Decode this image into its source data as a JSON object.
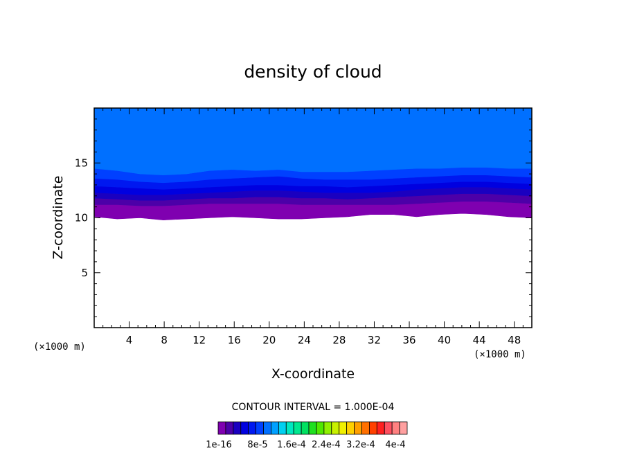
{
  "chart_data": {
    "type": "filled-contour",
    "title": "density of cloud",
    "xlabel": "X-coordinate",
    "ylabel": "Z-coordinate",
    "x_unit": "(×1000 m)",
    "y_unit": "(×1000 m)",
    "xlim": [
      0,
      50
    ],
    "ylim": [
      0,
      20
    ],
    "x_ticks": [
      4,
      8,
      12,
      16,
      20,
      24,
      28,
      32,
      36,
      40,
      44,
      48
    ],
    "y_ticks": [
      5,
      10,
      15
    ],
    "contour_interval_label": "CONTOUR INTERVAL = 1.000E-04",
    "colorbar_labels": [
      "1e-16",
      "8e-5",
      "1.6e-4",
      "2.4e-4",
      "3.2e-4",
      "4e-4"
    ],
    "colorbar_colors": [
      "#7f00b0",
      "#4c00a8",
      "#1a00c0",
      "#0000e0",
      "#0018f0",
      "#0040ff",
      "#0070ff",
      "#00a0ff",
      "#00d0f0",
      "#00e8c0",
      "#00e890",
      "#00e060",
      "#20e020",
      "#50e800",
      "#90f000",
      "#c8f000",
      "#f0f000",
      "#ffd000",
      "#ffa000",
      "#ff7000",
      "#ff4000",
      "#ff2020",
      "#ff5060",
      "#ff8080",
      "#ffa0a0"
    ],
    "bands": [
      {
        "level": "1e-16",
        "color": "#7f00b0",
        "base": [
          10.1,
          9.9,
          10.0,
          9.8,
          9.9,
          10.0,
          10.1,
          10.0,
          9.9,
          9.9,
          10.0,
          10.1,
          10.3,
          10.3,
          10.1,
          10.3,
          10.4,
          10.3,
          10.1,
          10.0
        ],
        "top": [
          11.2,
          11.2,
          11.1,
          11.1,
          11.2,
          11.3,
          11.3,
          11.3,
          11.3,
          11.2,
          11.2,
          11.2,
          11.2,
          11.2,
          11.3,
          11.4,
          11.5,
          11.5,
          11.4,
          11.3
        ]
      },
      {
        "level": "2e-5",
        "color": "#4c00a8",
        "top": [
          11.8,
          11.7,
          11.6,
          11.6,
          11.7,
          11.8,
          11.8,
          11.9,
          11.9,
          11.8,
          11.8,
          11.7,
          11.8,
          11.9,
          12.0,
          12.1,
          12.2,
          12.2,
          12.1,
          12.0
        ]
      },
      {
        "level": "4e-5",
        "color": "#1a00c0",
        "top": [
          12.3,
          12.2,
          12.1,
          12.1,
          12.2,
          12.3,
          12.4,
          12.5,
          12.5,
          12.4,
          12.3,
          12.3,
          12.3,
          12.4,
          12.6,
          12.7,
          12.8,
          12.8,
          12.7,
          12.6
        ]
      },
      {
        "level": "6e-5",
        "color": "#0000e0",
        "top": [
          12.9,
          12.8,
          12.7,
          12.6,
          12.7,
          12.8,
          12.9,
          13.0,
          13.0,
          12.9,
          12.9,
          12.8,
          12.9,
          13.0,
          13.1,
          13.2,
          13.3,
          13.3,
          13.2,
          13.1
        ]
      },
      {
        "level": "8e-5",
        "color": "#0018f0",
        "top": [
          13.6,
          13.5,
          13.3,
          13.2,
          13.3,
          13.5,
          13.6,
          13.7,
          13.8,
          13.6,
          13.5,
          13.5,
          13.5,
          13.6,
          13.7,
          13.8,
          13.9,
          13.9,
          13.8,
          13.7
        ]
      },
      {
        "level": "1e-4",
        "color": "#0040ff",
        "top": [
          14.5,
          14.3,
          14.0,
          13.9,
          14.0,
          14.3,
          14.4,
          14.3,
          14.4,
          14.2,
          14.2,
          14.2,
          14.3,
          14.4,
          14.5,
          14.5,
          14.6,
          14.6,
          14.5,
          14.5
        ]
      },
      {
        "level": "1.2e-4",
        "color": "#0070ff",
        "top": [
          20,
          20,
          20,
          20,
          20,
          20,
          20,
          20,
          20,
          20,
          20,
          20,
          20,
          20,
          20,
          20,
          20,
          20,
          20,
          20
        ]
      }
    ]
  }
}
